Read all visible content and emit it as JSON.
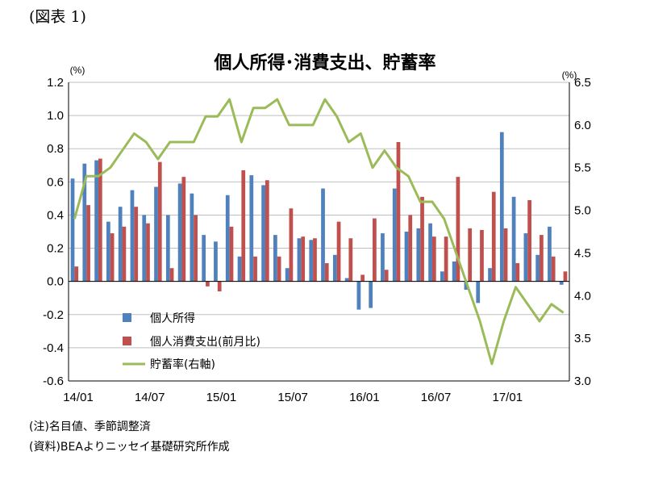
{
  "figure_label": "(図表 1)",
  "notes": {
    "note": "(注)名目値、季節調整済",
    "source": "(資料)BEAよりニッセイ基礎研究所作成"
  },
  "colors": {
    "income": "#4F81BD",
    "spending": "#C0504D",
    "savings": "#9BBB59",
    "grid": "#bfbfbf"
  },
  "chart_data": {
    "type": "bar+line",
    "title": "個人所得･消費支出、貯蓄率",
    "left_axis": {
      "unit": "(%)",
      "range": [
        -0.6,
        1.2
      ],
      "ticks": [
        "1.2",
        "1.0",
        "0.8",
        "0.6",
        "0.4",
        "0.2",
        "0.0",
        "-0.2",
        "-0.4",
        "-0.6"
      ]
    },
    "right_axis": {
      "unit": "(%)",
      "range": [
        3.0,
        6.5
      ],
      "ticks": [
        "6.5",
        "6.0",
        "5.5",
        "5.0",
        "4.5",
        "4.0",
        "3.5",
        "3.0"
      ]
    },
    "x_ticks": [
      {
        "index": 0,
        "label": "14/01"
      },
      {
        "index": 6,
        "label": "14/07"
      },
      {
        "index": 12,
        "label": "15/01"
      },
      {
        "index": 18,
        "label": "15/07"
      },
      {
        "index": 24,
        "label": "16/01"
      },
      {
        "index": 30,
        "label": "16/07"
      },
      {
        "index": 36,
        "label": "17/01"
      }
    ],
    "legend_placement": "bottom-left",
    "series": [
      {
        "name": "個人所得",
        "type": "bar",
        "axis": "left",
        "values": [
          0.62,
          0.71,
          0.73,
          0.36,
          0.45,
          0.55,
          0.4,
          0.57,
          0.4,
          0.59,
          0.53,
          0.28,
          0.24,
          0.52,
          0.15,
          0.64,
          0.58,
          0.28,
          0.08,
          0.26,
          0.25,
          0.56,
          0.16,
          0.02,
          -0.17,
          -0.16,
          0.29,
          0.56,
          0.3,
          0.32,
          0.35,
          0.06,
          0.12,
          -0.05,
          -0.13,
          0.08,
          0.9,
          0.51,
          0.29,
          0.16,
          0.33,
          -0.02
        ]
      },
      {
        "name": "個人消費支出(前月比)",
        "type": "bar",
        "axis": "left",
        "values": [
          0.09,
          0.46,
          0.74,
          0.29,
          0.33,
          0.45,
          0.35,
          0.72,
          0.08,
          0.63,
          0.4,
          -0.03,
          -0.06,
          0.33,
          0.67,
          0.15,
          0.61,
          0.15,
          0.44,
          0.27,
          0.26,
          0.11,
          0.36,
          0.26,
          0.04,
          0.38,
          0.07,
          0.84,
          0.4,
          0.51,
          0.27,
          0.27,
          0.63,
          0.32,
          0.31,
          0.54,
          0.32,
          0.11,
          0.49,
          0.28,
          0.15,
          0.06
        ]
      },
      {
        "name": "貯蓄率(右軸)",
        "type": "line",
        "axis": "right",
        "values": [
          4.9,
          5.4,
          5.4,
          5.5,
          5.7,
          5.9,
          5.8,
          5.6,
          5.8,
          5.8,
          5.8,
          6.1,
          6.1,
          6.3,
          5.8,
          6.2,
          6.2,
          6.3,
          6.0,
          6.0,
          6.0,
          6.3,
          6.1,
          5.8,
          5.9,
          5.5,
          5.7,
          5.5,
          5.4,
          5.1,
          5.1,
          4.9,
          4.5,
          4.1,
          3.7,
          3.2,
          3.7,
          4.1,
          3.9,
          3.7,
          3.9,
          3.8
        ]
      }
    ]
  }
}
